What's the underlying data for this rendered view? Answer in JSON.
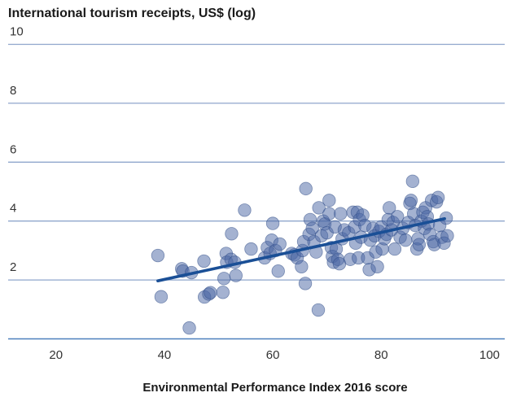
{
  "chart_data": {
    "type": "scatter",
    "title": "International tourism receipts, US$ (log)",
    "xlabel": "Environmental Performance Index 2016 score",
    "ylabel": "",
    "xlim": [
      13,
      100
    ],
    "ylim": [
      0,
      10
    ],
    "x_ticks": [
      20,
      40,
      60,
      80,
      100
    ],
    "y_ticks": [
      2,
      4,
      6,
      8,
      10
    ],
    "grid": "horizontal",
    "colors": {
      "points": "#4a66a3",
      "trend": "#1a4f96",
      "grid": "#8fa6cc",
      "axis": "#4d80bd"
    },
    "trendline": {
      "x": [
        38.8,
        91.7
      ],
      "y": [
        1.97,
        4.08
      ]
    },
    "points": [
      {
        "x": 38.8,
        "y": 2.83
      },
      {
        "x": 39.4,
        "y": 1.43
      },
      {
        "x": 43.2,
        "y": 2.38
      },
      {
        "x": 43.4,
        "y": 2.3
      },
      {
        "x": 44.6,
        "y": 0.37
      },
      {
        "x": 45.0,
        "y": 2.25
      },
      {
        "x": 47.3,
        "y": 2.64
      },
      {
        "x": 47.4,
        "y": 1.42
      },
      {
        "x": 48.2,
        "y": 1.52
      },
      {
        "x": 48.5,
        "y": 1.57
      },
      {
        "x": 50.8,
        "y": 1.58
      },
      {
        "x": 51.0,
        "y": 2.05
      },
      {
        "x": 51.4,
        "y": 2.9
      },
      {
        "x": 51.5,
        "y": 2.6
      },
      {
        "x": 52.3,
        "y": 2.7
      },
      {
        "x": 52.4,
        "y": 3.57
      },
      {
        "x": 53.0,
        "y": 2.6
      },
      {
        "x": 53.2,
        "y": 2.15
      },
      {
        "x": 54.8,
        "y": 4.37
      },
      {
        "x": 56.0,
        "y": 3.05
      },
      {
        "x": 58.5,
        "y": 2.75
      },
      {
        "x": 59.0,
        "y": 3.1
      },
      {
        "x": 59.5,
        "y": 2.9
      },
      {
        "x": 59.8,
        "y": 3.35
      },
      {
        "x": 60.0,
        "y": 3.92
      },
      {
        "x": 60.5,
        "y": 3.0
      },
      {
        "x": 61.0,
        "y": 2.3
      },
      {
        "x": 61.3,
        "y": 3.22
      },
      {
        "x": 63.5,
        "y": 2.9
      },
      {
        "x": 64.0,
        "y": 2.85
      },
      {
        "x": 64.5,
        "y": 2.75
      },
      {
        "x": 65.3,
        "y": 2.45
      },
      {
        "x": 65.5,
        "y": 3.0
      },
      {
        "x": 65.7,
        "y": 3.3
      },
      {
        "x": 66.0,
        "y": 1.88
      },
      {
        "x": 66.1,
        "y": 5.1
      },
      {
        "x": 66.7,
        "y": 3.55
      },
      {
        "x": 66.9,
        "y": 4.05
      },
      {
        "x": 67.3,
        "y": 3.75
      },
      {
        "x": 67.6,
        "y": 3.3
      },
      {
        "x": 68.0,
        "y": 2.95
      },
      {
        "x": 68.4,
        "y": 0.98
      },
      {
        "x": 68.5,
        "y": 4.45
      },
      {
        "x": 69.0,
        "y": 3.5
      },
      {
        "x": 69.3,
        "y": 4.0
      },
      {
        "x": 69.6,
        "y": 3.9
      },
      {
        "x": 70.0,
        "y": 3.6
      },
      {
        "x": 70.4,
        "y": 4.7
      },
      {
        "x": 70.4,
        "y": 4.25
      },
      {
        "x": 70.8,
        "y": 3.1
      },
      {
        "x": 71.0,
        "y": 2.8
      },
      {
        "x": 71.2,
        "y": 2.6
      },
      {
        "x": 71.5,
        "y": 3.8
      },
      {
        "x": 71.7,
        "y": 3.05
      },
      {
        "x": 72.0,
        "y": 2.7
      },
      {
        "x": 72.3,
        "y": 2.55
      },
      {
        "x": 72.5,
        "y": 4.25
      },
      {
        "x": 72.8,
        "y": 3.4
      },
      {
        "x": 73.2,
        "y": 3.7
      },
      {
        "x": 74.0,
        "y": 3.6
      },
      {
        "x": 74.3,
        "y": 2.7
      },
      {
        "x": 74.8,
        "y": 4.3
      },
      {
        "x": 75.1,
        "y": 3.8
      },
      {
        "x": 75.3,
        "y": 3.25
      },
      {
        "x": 75.6,
        "y": 4.3
      },
      {
        "x": 75.8,
        "y": 2.75
      },
      {
        "x": 76.0,
        "y": 4.05
      },
      {
        "x": 76.3,
        "y": 3.45
      },
      {
        "x": 76.6,
        "y": 4.2
      },
      {
        "x": 77.0,
        "y": 3.85
      },
      {
        "x": 77.5,
        "y": 2.75
      },
      {
        "x": 77.8,
        "y": 2.35
      },
      {
        "x": 78.0,
        "y": 3.35
      },
      {
        "x": 78.5,
        "y": 3.75
      },
      {
        "x": 78.8,
        "y": 3.5
      },
      {
        "x": 79.0,
        "y": 2.95
      },
      {
        "x": 79.3,
        "y": 2.45
      },
      {
        "x": 79.6,
        "y": 3.65
      },
      {
        "x": 80.0,
        "y": 3.8
      },
      {
        "x": 80.2,
        "y": 3.05
      },
      {
        "x": 80.6,
        "y": 3.4
      },
      {
        "x": 81.0,
        "y": 3.55
      },
      {
        "x": 81.3,
        "y": 4.05
      },
      {
        "x": 81.5,
        "y": 4.45
      },
      {
        "x": 81.9,
        "y": 3.7
      },
      {
        "x": 82.2,
        "y": 3.95
      },
      {
        "x": 82.5,
        "y": 3.05
      },
      {
        "x": 83.0,
        "y": 4.15
      },
      {
        "x": 83.5,
        "y": 3.45
      },
      {
        "x": 84.0,
        "y": 3.75
      },
      {
        "x": 84.5,
        "y": 3.35
      },
      {
        "x": 85.0,
        "y": 3.95
      },
      {
        "x": 85.3,
        "y": 4.6
      },
      {
        "x": 85.5,
        "y": 4.7
      },
      {
        "x": 85.8,
        "y": 5.35
      },
      {
        "x": 86.0,
        "y": 4.25
      },
      {
        "x": 86.3,
        "y": 3.85
      },
      {
        "x": 86.6,
        "y": 3.05
      },
      {
        "x": 86.8,
        "y": 3.4
      },
      {
        "x": 87.0,
        "y": 3.2
      },
      {
        "x": 87.4,
        "y": 4.0
      },
      {
        "x": 87.7,
        "y": 4.3
      },
      {
        "x": 88.0,
        "y": 3.75
      },
      {
        "x": 88.2,
        "y": 4.45
      },
      {
        "x": 88.5,
        "y": 4.15
      },
      {
        "x": 88.7,
        "y": 3.9
      },
      {
        "x": 89.0,
        "y": 3.55
      },
      {
        "x": 89.3,
        "y": 4.7
      },
      {
        "x": 89.6,
        "y": 3.3
      },
      {
        "x": 89.8,
        "y": 3.2
      },
      {
        "x": 90.2,
        "y": 4.65
      },
      {
        "x": 90.5,
        "y": 4.8
      },
      {
        "x": 90.8,
        "y": 3.85
      },
      {
        "x": 91.2,
        "y": 3.45
      },
      {
        "x": 91.6,
        "y": 3.25
      },
      {
        "x": 92.0,
        "y": 4.1
      },
      {
        "x": 92.2,
        "y": 3.5
      }
    ]
  }
}
